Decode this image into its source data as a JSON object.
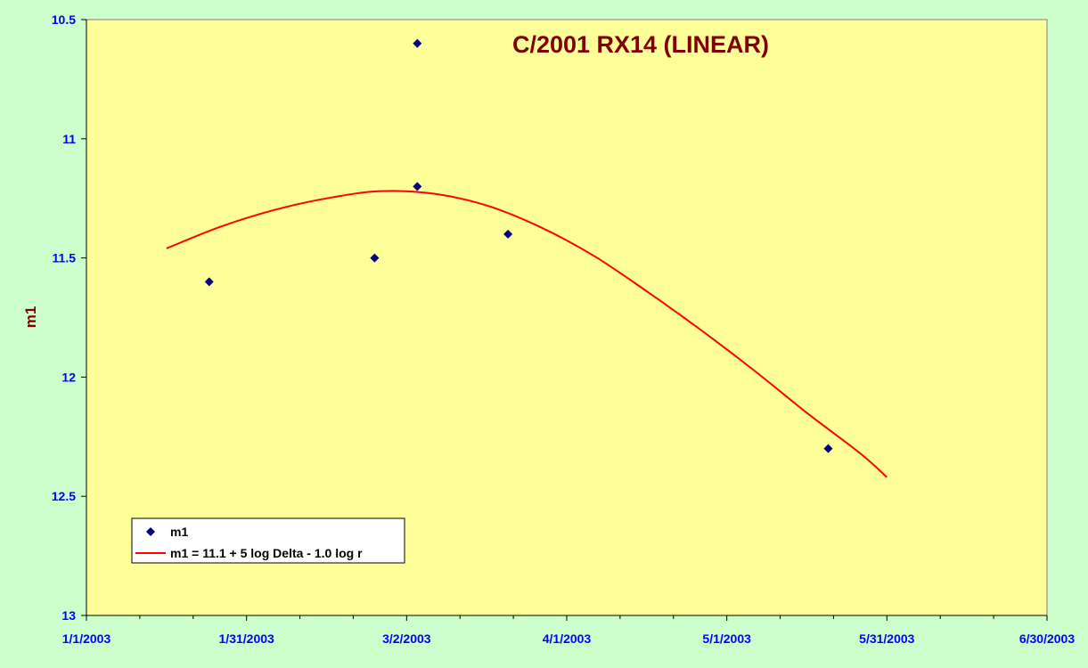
{
  "chart_data": {
    "type": "scatter",
    "title": "C/2001 RX14 (LINEAR)",
    "xlabel": "",
    "ylabel": "m1",
    "x_axis": {
      "type": "date",
      "range": [
        "2003-01-01",
        "2003-06-30"
      ],
      "tick_labels": [
        "1/1/2003",
        "1/31/2003",
        "3/2/2003",
        "4/1/2003",
        "5/1/2003",
        "5/31/2003",
        "6/30/2003"
      ],
      "tick_dates": [
        "2003-01-01",
        "2003-01-31",
        "2003-03-02",
        "2003-04-01",
        "2003-05-01",
        "2003-05-31",
        "2003-06-30"
      ]
    },
    "y_axis": {
      "range": [
        10.5,
        13
      ],
      "reversed": true,
      "tick_values": [
        10.5,
        11,
        11.5,
        12,
        12.5,
        13
      ],
      "tick_labels": [
        "10.5",
        "11",
        "11.5",
        "12",
        "12.5",
        "13"
      ]
    },
    "grid": false,
    "legend_position": "bottom-left",
    "series": [
      {
        "name": "m1",
        "kind": "scatter",
        "marker": "diamond",
        "color": "#000080",
        "points": [
          {
            "x": "2003-01-24",
            "y": 11.6
          },
          {
            "x": "2003-02-24",
            "y": 11.5
          },
          {
            "x": "2003-03-04",
            "y": 10.6
          },
          {
            "x": "2003-03-04",
            "y": 11.2
          },
          {
            "x": "2003-03-21",
            "y": 11.4
          },
          {
            "x": "2003-05-20",
            "y": 12.3
          }
        ]
      },
      {
        "name": "m1 = 11.1 + 5 log Delta - 1.0 log r",
        "kind": "line",
        "color": "#ff0000",
        "points": [
          {
            "x": "2003-01-16",
            "y": 11.46
          },
          {
            "x": "2003-01-26",
            "y": 11.37
          },
          {
            "x": "2003-02-05",
            "y": 11.3
          },
          {
            "x": "2003-02-15",
            "y": 11.25
          },
          {
            "x": "2003-02-25",
            "y": 11.22
          },
          {
            "x": "2003-03-07",
            "y": 11.23
          },
          {
            "x": "2003-03-17",
            "y": 11.28
          },
          {
            "x": "2003-03-27",
            "y": 11.37
          },
          {
            "x": "2003-04-06",
            "y": 11.49
          },
          {
            "x": "2003-04-16",
            "y": 11.64
          },
          {
            "x": "2003-04-26",
            "y": 11.8
          },
          {
            "x": "2003-05-06",
            "y": 11.97
          },
          {
            "x": "2003-05-16",
            "y": 12.15
          },
          {
            "x": "2003-05-26",
            "y": 12.32
          },
          {
            "x": "2003-05-31",
            "y": 12.42
          }
        ]
      }
    ]
  },
  "colors": {
    "page_background": "#ccffcc",
    "plot_background": "#ffff99",
    "tick_label": "#0000ff",
    "title": "#800000",
    "axis_title": "#800000"
  }
}
